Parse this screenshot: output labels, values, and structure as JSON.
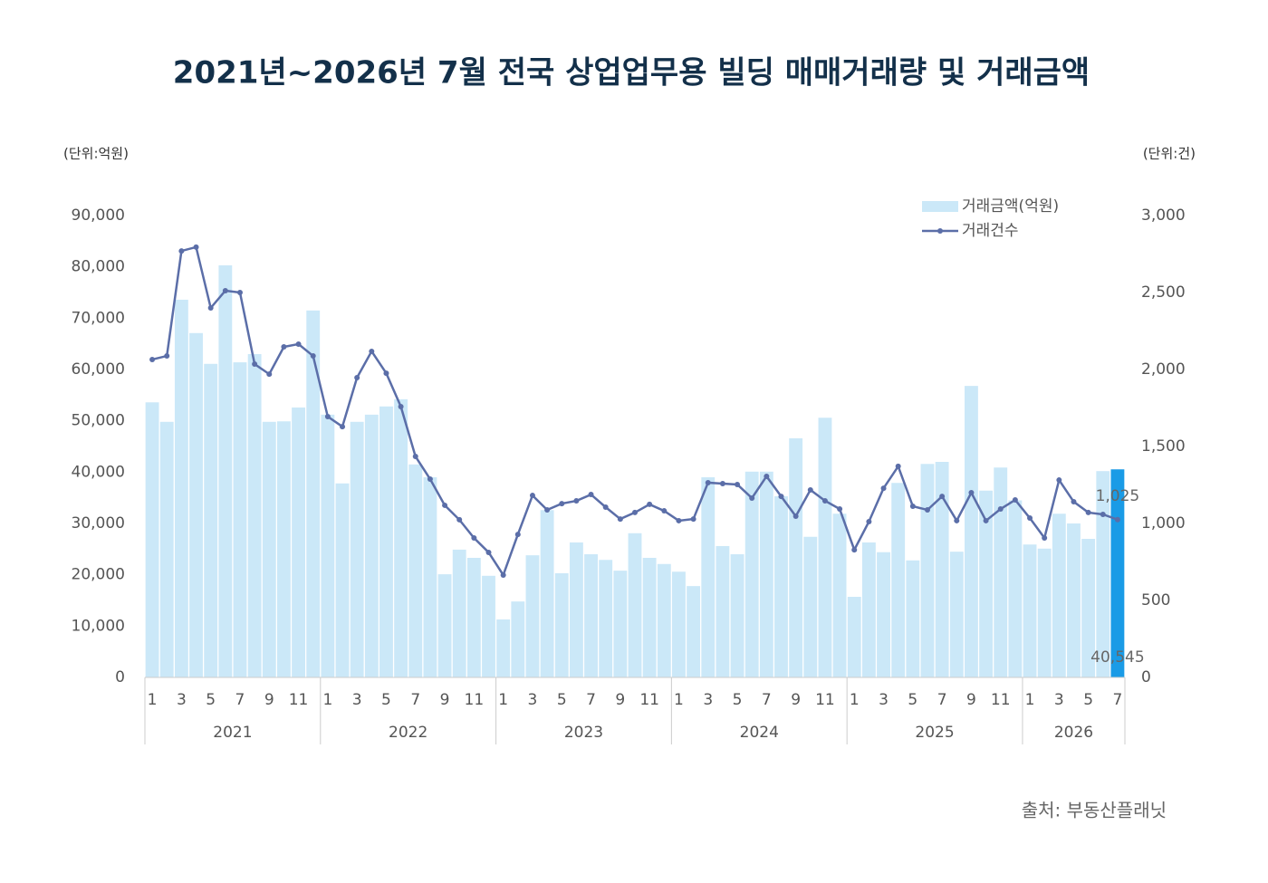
{
  "chart_data": {
    "type": "bar-line",
    "title": "2021년~2026년 7월 전국 상업업무용 빌딩 매매거래량 및 거래금액",
    "y_unit": "(단위:억원)",
    "y2_unit": "(단위:건)",
    "source": "출처: 부동산플래닛",
    "categories": [
      "1",
      null,
      "3",
      null,
      "5",
      null,
      "7",
      null,
      "9",
      null,
      "11",
      null,
      "1",
      null,
      "3",
      null,
      "5",
      null,
      "7",
      null,
      "9",
      null,
      "11",
      null,
      "1",
      null,
      "3",
      null,
      "5",
      null,
      "7",
      null,
      "9",
      null,
      "11",
      null,
      "1",
      null,
      "3",
      null,
      "5",
      null,
      "7",
      null,
      "9",
      null,
      "11",
      null,
      "1",
      null,
      "3",
      null,
      "5",
      null,
      "7",
      null,
      "9",
      null,
      "11",
      null,
      "1",
      null,
      "3",
      null,
      "5",
      null,
      "7"
    ],
    "years": [
      "2021",
      "2022",
      "2023",
      "2024",
      "2025",
      "2026"
    ],
    "series": [
      {
        "name": "거래금액(억원)",
        "type": "bar",
        "color": "#cbe8f8",
        "highlight_color": "#1a9be6",
        "values": [
          53600,
          49800,
          73600,
          67100,
          61100,
          80300,
          61400,
          63000,
          49800,
          49900,
          52600,
          71500,
          51200,
          37800,
          49800,
          51200,
          52800,
          54200,
          41500,
          39000,
          20100,
          24900,
          23300,
          19800,
          11300,
          14800,
          23800,
          32600,
          20300,
          26300,
          24000,
          22900,
          20800,
          28100,
          23300,
          22100,
          20600,
          17800,
          39000,
          25600,
          24000,
          40100,
          40100,
          35300,
          46600,
          27400,
          50600,
          31900,
          15700,
          26300,
          24400,
          37900,
          22800,
          41600,
          42000,
          24500,
          56800,
          36400,
          40900,
          34500,
          25900,
          25100,
          31900,
          30000,
          27000,
          40200,
          40545
        ],
        "value_labels": [
          null,
          null,
          null,
          null,
          null,
          null,
          null,
          null,
          null,
          null,
          null,
          null,
          null,
          null,
          null,
          null,
          null,
          null,
          null,
          null,
          null,
          null,
          null,
          null,
          null,
          null,
          null,
          null,
          null,
          null,
          null,
          null,
          null,
          null,
          null,
          null,
          null,
          null,
          null,
          null,
          null,
          null,
          null,
          null,
          null,
          null,
          null,
          null,
          null,
          null,
          null,
          null,
          null,
          null,
          null,
          null,
          null,
          null,
          null,
          null,
          null,
          null,
          null,
          null,
          null,
          null,
          "40,545"
        ]
      },
      {
        "name": "거래건수",
        "type": "line",
        "axis": "y2",
        "color": "#5b6ea8",
        "values": [
          2065,
          2088,
          2770,
          2795,
          2400,
          2512,
          2500,
          2035,
          1970,
          2147,
          2165,
          2088,
          1694,
          1629,
          1947,
          2118,
          1976,
          1759,
          1435,
          1288,
          1118,
          1024,
          906,
          812,
          665,
          929,
          1182,
          1088,
          1129,
          1147,
          1188,
          1106,
          1029,
          1071,
          1124,
          1082,
          1018,
          1029,
          1265,
          1259,
          1253,
          1165,
          1306,
          1176,
          1047,
          1218,
          1147,
          1094,
          829,
          1012,
          1229,
          1371,
          1112,
          1088,
          1176,
          1018,
          1200,
          1018,
          1094,
          1153,
          1035,
          906,
          1282,
          1141,
          1071,
          1059,
          1025
        ],
        "value_labels": [
          null,
          null,
          null,
          null,
          null,
          null,
          null,
          null,
          null,
          null,
          null,
          null,
          null,
          null,
          null,
          null,
          null,
          null,
          null,
          null,
          null,
          null,
          null,
          null,
          null,
          null,
          null,
          null,
          null,
          null,
          null,
          null,
          null,
          null,
          null,
          null,
          null,
          null,
          null,
          null,
          null,
          null,
          null,
          null,
          null,
          null,
          null,
          null,
          null,
          null,
          null,
          null,
          null,
          null,
          null,
          null,
          null,
          null,
          null,
          null,
          null,
          null,
          null,
          null,
          null,
          null,
          "1,025"
        ]
      }
    ],
    "ylim": [
      0,
      90000
    ],
    "yticks": [
      0,
      {
        "value": 10000,
        "label": "10,000"
      },
      {
        "value": 20000,
        "label": "20,000"
      },
      {
        "value": 30000,
        "label": "30,000"
      },
      {
        "value": 40000,
        "label": "40,000"
      },
      {
        "value": 50000,
        "label": "50,000"
      },
      {
        "value": 60000,
        "label": "60,000"
      },
      {
        "value": 70000,
        "label": "70,000"
      },
      {
        "value": 80000,
        "label": "80,000"
      },
      {
        "value": 90000,
        "label": "90,000"
      }
    ],
    "y2lim": [
      0,
      3000
    ],
    "y2ticks": [
      0,
      500,
      {
        "value": 1000,
        "label": "1,000"
      },
      {
        "value": 1500,
        "label": "1,500"
      },
      {
        "value": 2000,
        "label": "2,000"
      },
      {
        "value": 2500,
        "label": "2,500"
      },
      {
        "value": 3000,
        "label": "3,000"
      }
    ],
    "grid": false,
    "legend": "top-right"
  }
}
